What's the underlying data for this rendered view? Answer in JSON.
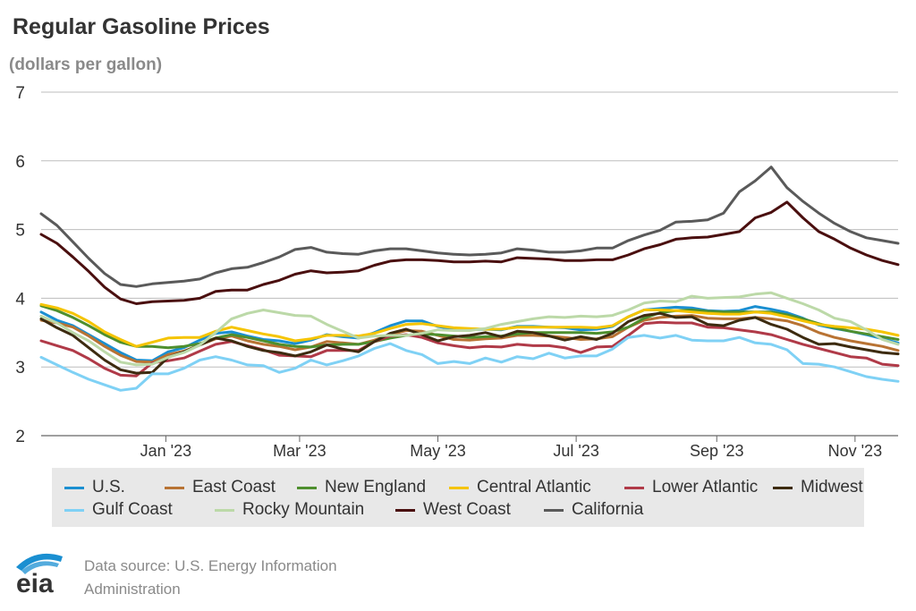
{
  "title": "Regular Gasoline Prices",
  "subtitle": "(dollars per gallon)",
  "source_line1": "Data source: U.S. Energy Information",
  "source_line2": "Administration",
  "logo_text": "eia",
  "colors": {
    "U.S.": "#1a8fd1",
    "East Coast": "#b87333",
    "New England": "#4e8f2e",
    "Central Atlantic": "#f5c400",
    "Lower Atlantic": "#b03a48",
    "Midwest": "#3d2b10",
    "Gulf Coast": "#7fd1f5",
    "Rocky Mountain": "#bcd9a8",
    "West Coast": "#4a0f0f",
    "California": "#5a5a5a"
  },
  "chart_data": {
    "type": "line",
    "title": "Regular Gasoline Prices",
    "ylabel": "(dollars per gallon)",
    "ylim": [
      2,
      7
    ],
    "yticks": [
      2,
      3,
      4,
      5,
      6,
      7
    ],
    "xlim": [
      "2022-11-07",
      "2023-11-20"
    ],
    "xticks": [
      {
        "date": "2023-01-01",
        "label": "Jan '23"
      },
      {
        "date": "2023-03-01",
        "label": "Mar '23"
      },
      {
        "date": "2023-05-01",
        "label": "May '23"
      },
      {
        "date": "2023-07-01",
        "label": "Jul '23"
      },
      {
        "date": "2023-09-01",
        "label": "Sep '23"
      },
      {
        "date": "2023-11-01",
        "label": "Nov '23"
      }
    ],
    "grid": "horizontal",
    "legend_position": "bottom",
    "x": [
      "2022-11-07",
      "2022-11-14",
      "2022-11-21",
      "2022-11-28",
      "2022-12-05",
      "2022-12-12",
      "2022-12-19",
      "2022-12-26",
      "2023-01-02",
      "2023-01-09",
      "2023-01-16",
      "2023-01-23",
      "2023-01-30",
      "2023-02-06",
      "2023-02-13",
      "2023-02-20",
      "2023-02-27",
      "2023-03-06",
      "2023-03-13",
      "2023-03-20",
      "2023-03-27",
      "2023-04-03",
      "2023-04-10",
      "2023-04-17",
      "2023-04-24",
      "2023-05-01",
      "2023-05-08",
      "2023-05-15",
      "2023-05-22",
      "2023-05-29",
      "2023-06-05",
      "2023-06-12",
      "2023-06-19",
      "2023-06-26",
      "2023-07-03",
      "2023-07-10",
      "2023-07-17",
      "2023-07-24",
      "2023-07-31",
      "2023-08-07",
      "2023-08-14",
      "2023-08-21",
      "2023-08-28",
      "2023-09-04",
      "2023-09-11",
      "2023-09-18",
      "2023-09-25",
      "2023-10-02",
      "2023-10-09",
      "2023-10-16",
      "2023-10-23",
      "2023-10-30",
      "2023-11-06",
      "2023-11-13",
      "2023-11-20"
    ],
    "series": [
      {
        "name": "U.S.",
        "values": [
          3.8,
          3.68,
          3.6,
          3.47,
          3.34,
          3.21,
          3.1,
          3.09,
          3.22,
          3.28,
          3.39,
          3.49,
          3.51,
          3.45,
          3.4,
          3.38,
          3.34,
          3.39,
          3.47,
          3.44,
          3.42,
          3.5,
          3.6,
          3.67,
          3.67,
          3.59,
          3.55,
          3.54,
          3.55,
          3.54,
          3.59,
          3.59,
          3.58,
          3.57,
          3.54,
          3.55,
          3.59,
          3.73,
          3.83,
          3.85,
          3.87,
          3.86,
          3.82,
          3.81,
          3.82,
          3.88,
          3.84,
          3.79,
          3.71,
          3.61,
          3.56,
          3.52,
          3.47,
          3.41,
          3.35
        ]
      },
      {
        "name": "East Coast",
        "values": [
          3.68,
          3.64,
          3.58,
          3.45,
          3.3,
          3.17,
          3.08,
          3.07,
          3.18,
          3.23,
          3.32,
          3.41,
          3.45,
          3.38,
          3.33,
          3.3,
          3.25,
          3.29,
          3.37,
          3.35,
          3.33,
          3.39,
          3.47,
          3.53,
          3.52,
          3.46,
          3.4,
          3.39,
          3.41,
          3.42,
          3.46,
          3.46,
          3.45,
          3.43,
          3.4,
          3.41,
          3.44,
          3.58,
          3.68,
          3.72,
          3.74,
          3.75,
          3.71,
          3.7,
          3.7,
          3.72,
          3.7,
          3.67,
          3.6,
          3.5,
          3.43,
          3.38,
          3.34,
          3.3,
          3.24
        ]
      },
      {
        "name": "New England",
        "values": [
          3.89,
          3.82,
          3.72,
          3.6,
          3.47,
          3.36,
          3.3,
          3.3,
          3.28,
          3.3,
          3.34,
          3.42,
          3.47,
          3.43,
          3.38,
          3.33,
          3.3,
          3.29,
          3.32,
          3.33,
          3.33,
          3.37,
          3.42,
          3.46,
          3.48,
          3.47,
          3.45,
          3.43,
          3.44,
          3.45,
          3.48,
          3.5,
          3.5,
          3.5,
          3.5,
          3.49,
          3.51,
          3.58,
          3.71,
          3.79,
          3.82,
          3.83,
          3.81,
          3.8,
          3.8,
          3.8,
          3.8,
          3.76,
          3.7,
          3.63,
          3.57,
          3.52,
          3.48,
          3.44,
          3.4
        ]
      },
      {
        "name": "Central Atlantic",
        "values": [
          3.91,
          3.86,
          3.78,
          3.66,
          3.51,
          3.4,
          3.3,
          3.36,
          3.42,
          3.43,
          3.43,
          3.52,
          3.58,
          3.53,
          3.48,
          3.44,
          3.38,
          3.41,
          3.46,
          3.46,
          3.45,
          3.49,
          3.56,
          3.62,
          3.63,
          3.6,
          3.57,
          3.56,
          3.55,
          3.55,
          3.58,
          3.58,
          3.58,
          3.58,
          3.58,
          3.57,
          3.6,
          3.73,
          3.83,
          3.83,
          3.82,
          3.8,
          3.78,
          3.77,
          3.77,
          3.8,
          3.78,
          3.73,
          3.67,
          3.62,
          3.59,
          3.57,
          3.55,
          3.51,
          3.46
        ]
      },
      {
        "name": "Lower Atlantic",
        "values": [
          3.38,
          3.31,
          3.24,
          3.12,
          2.98,
          2.88,
          2.87,
          3.06,
          3.09,
          3.13,
          3.23,
          3.33,
          3.37,
          3.31,
          3.25,
          3.17,
          3.16,
          3.15,
          3.24,
          3.24,
          3.24,
          3.37,
          3.45,
          3.47,
          3.43,
          3.35,
          3.31,
          3.28,
          3.3,
          3.29,
          3.33,
          3.31,
          3.31,
          3.28,
          3.21,
          3.29,
          3.3,
          3.46,
          3.63,
          3.65,
          3.64,
          3.64,
          3.58,
          3.57,
          3.54,
          3.51,
          3.47,
          3.4,
          3.33,
          3.27,
          3.21,
          3.15,
          3.13,
          3.04,
          3.02
        ]
      },
      {
        "name": "Midwest",
        "values": [
          3.7,
          3.57,
          3.46,
          3.28,
          3.1,
          2.96,
          2.91,
          2.92,
          3.14,
          3.22,
          3.32,
          3.42,
          3.38,
          3.3,
          3.24,
          3.21,
          3.16,
          3.22,
          3.32,
          3.26,
          3.22,
          3.37,
          3.49,
          3.55,
          3.47,
          3.38,
          3.44,
          3.46,
          3.5,
          3.44,
          3.52,
          3.5,
          3.45,
          3.39,
          3.44,
          3.4,
          3.49,
          3.66,
          3.75,
          3.78,
          3.72,
          3.73,
          3.62,
          3.6,
          3.68,
          3.72,
          3.62,
          3.55,
          3.43,
          3.33,
          3.34,
          3.29,
          3.25,
          3.21,
          3.19
        ]
      },
      {
        "name": "Gulf Coast",
        "values": [
          3.14,
          3.03,
          2.92,
          2.82,
          2.74,
          2.66,
          2.69,
          2.9,
          2.9,
          2.98,
          3.1,
          3.15,
          3.1,
          3.03,
          3.02,
          2.92,
          2.98,
          3.1,
          3.03,
          3.09,
          3.16,
          3.27,
          3.34,
          3.24,
          3.18,
          3.05,
          3.08,
          3.05,
          3.13,
          3.07,
          3.15,
          3.12,
          3.2,
          3.13,
          3.16,
          3.16,
          3.26,
          3.43,
          3.46,
          3.42,
          3.46,
          3.39,
          3.38,
          3.38,
          3.43,
          3.35,
          3.33,
          3.25,
          3.05,
          3.04,
          3.0,
          2.93,
          2.86,
          2.82,
          2.79
        ]
      },
      {
        "name": "Rocky Mountain",
        "values": [
          3.74,
          3.64,
          3.5,
          3.38,
          3.22,
          3.07,
          3.03,
          3.04,
          3.14,
          3.21,
          3.32,
          3.5,
          3.7,
          3.78,
          3.83,
          3.79,
          3.75,
          3.74,
          3.62,
          3.52,
          3.42,
          3.45,
          3.46,
          3.46,
          3.49,
          3.54,
          3.53,
          3.53,
          3.56,
          3.62,
          3.66,
          3.7,
          3.73,
          3.72,
          3.74,
          3.73,
          3.75,
          3.83,
          3.93,
          3.96,
          3.95,
          4.03,
          4.0,
          4.01,
          4.02,
          4.06,
          4.08,
          4.0,
          3.92,
          3.83,
          3.71,
          3.66,
          3.54,
          3.4,
          3.33
        ]
      },
      {
        "name": "West Coast",
        "values": [
          4.93,
          4.8,
          4.6,
          4.39,
          4.16,
          3.99,
          3.92,
          3.95,
          3.96,
          3.97,
          4.0,
          4.1,
          4.12,
          4.12,
          4.2,
          4.26,
          4.35,
          4.4,
          4.37,
          4.38,
          4.4,
          4.48,
          4.54,
          4.56,
          4.56,
          4.55,
          4.53,
          4.53,
          4.54,
          4.53,
          4.59,
          4.58,
          4.57,
          4.55,
          4.55,
          4.56,
          4.56,
          4.63,
          4.72,
          4.78,
          4.86,
          4.88,
          4.89,
          4.93,
          4.97,
          5.17,
          5.25,
          5.4,
          5.17,
          4.97,
          4.86,
          4.73,
          4.63,
          4.55,
          4.49
        ]
      },
      {
        "name": "California",
        "values": [
          5.23,
          5.06,
          4.82,
          4.58,
          4.36,
          4.2,
          4.17,
          4.21,
          4.23,
          4.25,
          4.28,
          4.37,
          4.43,
          4.45,
          4.52,
          4.6,
          4.71,
          4.74,
          4.67,
          4.65,
          4.64,
          4.69,
          4.72,
          4.72,
          4.69,
          4.66,
          4.64,
          4.63,
          4.64,
          4.66,
          4.72,
          4.7,
          4.67,
          4.67,
          4.69,
          4.73,
          4.73,
          4.84,
          4.92,
          4.99,
          5.11,
          5.12,
          5.14,
          5.24,
          5.55,
          5.71,
          5.91,
          5.61,
          5.41,
          5.24,
          5.09,
          4.97,
          4.88,
          4.84,
          4.8
        ]
      }
    ]
  }
}
